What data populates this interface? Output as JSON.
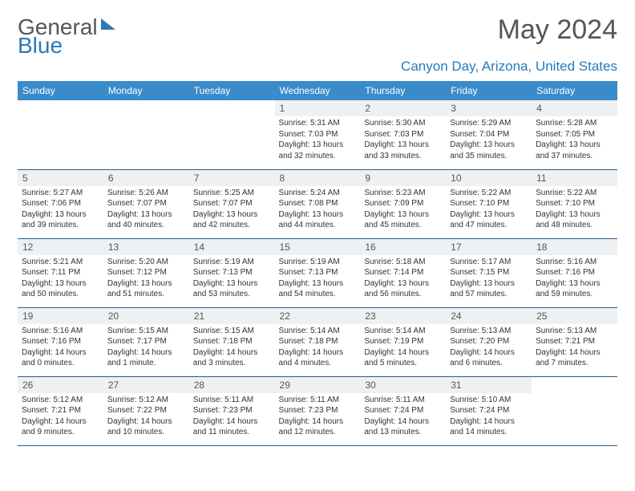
{
  "logo": {
    "part1": "General",
    "part2": "Blue"
  },
  "title": "May 2024",
  "location": "Canyon Day, Arizona, United States",
  "colors": {
    "headerBg": "#3a8bc9",
    "headerText": "#ffffff",
    "accent": "#2a7ab8",
    "dayStrip": "#eef1f3",
    "rowBorder": "#2a5a8a",
    "text": "#333333",
    "muted": "#555555"
  },
  "weekdays": [
    "Sunday",
    "Monday",
    "Tuesday",
    "Wednesday",
    "Thursday",
    "Friday",
    "Saturday"
  ],
  "weeks": [
    [
      null,
      null,
      null,
      {
        "n": "1",
        "sr": "5:31 AM",
        "ss": "7:03 PM",
        "dl": "13 hours and 32 minutes."
      },
      {
        "n": "2",
        "sr": "5:30 AM",
        "ss": "7:03 PM",
        "dl": "13 hours and 33 minutes."
      },
      {
        "n": "3",
        "sr": "5:29 AM",
        "ss": "7:04 PM",
        "dl": "13 hours and 35 minutes."
      },
      {
        "n": "4",
        "sr": "5:28 AM",
        "ss": "7:05 PM",
        "dl": "13 hours and 37 minutes."
      }
    ],
    [
      {
        "n": "5",
        "sr": "5:27 AM",
        "ss": "7:06 PM",
        "dl": "13 hours and 39 minutes."
      },
      {
        "n": "6",
        "sr": "5:26 AM",
        "ss": "7:07 PM",
        "dl": "13 hours and 40 minutes."
      },
      {
        "n": "7",
        "sr": "5:25 AM",
        "ss": "7:07 PM",
        "dl": "13 hours and 42 minutes."
      },
      {
        "n": "8",
        "sr": "5:24 AM",
        "ss": "7:08 PM",
        "dl": "13 hours and 44 minutes."
      },
      {
        "n": "9",
        "sr": "5:23 AM",
        "ss": "7:09 PM",
        "dl": "13 hours and 45 minutes."
      },
      {
        "n": "10",
        "sr": "5:22 AM",
        "ss": "7:10 PM",
        "dl": "13 hours and 47 minutes."
      },
      {
        "n": "11",
        "sr": "5:22 AM",
        "ss": "7:10 PM",
        "dl": "13 hours and 48 minutes."
      }
    ],
    [
      {
        "n": "12",
        "sr": "5:21 AM",
        "ss": "7:11 PM",
        "dl": "13 hours and 50 minutes."
      },
      {
        "n": "13",
        "sr": "5:20 AM",
        "ss": "7:12 PM",
        "dl": "13 hours and 51 minutes."
      },
      {
        "n": "14",
        "sr": "5:19 AM",
        "ss": "7:13 PM",
        "dl": "13 hours and 53 minutes."
      },
      {
        "n": "15",
        "sr": "5:19 AM",
        "ss": "7:13 PM",
        "dl": "13 hours and 54 minutes."
      },
      {
        "n": "16",
        "sr": "5:18 AM",
        "ss": "7:14 PM",
        "dl": "13 hours and 56 minutes."
      },
      {
        "n": "17",
        "sr": "5:17 AM",
        "ss": "7:15 PM",
        "dl": "13 hours and 57 minutes."
      },
      {
        "n": "18",
        "sr": "5:16 AM",
        "ss": "7:16 PM",
        "dl": "13 hours and 59 minutes."
      }
    ],
    [
      {
        "n": "19",
        "sr": "5:16 AM",
        "ss": "7:16 PM",
        "dl": "14 hours and 0 minutes."
      },
      {
        "n": "20",
        "sr": "5:15 AM",
        "ss": "7:17 PM",
        "dl": "14 hours and 1 minute."
      },
      {
        "n": "21",
        "sr": "5:15 AM",
        "ss": "7:18 PM",
        "dl": "14 hours and 3 minutes."
      },
      {
        "n": "22",
        "sr": "5:14 AM",
        "ss": "7:18 PM",
        "dl": "14 hours and 4 minutes."
      },
      {
        "n": "23",
        "sr": "5:14 AM",
        "ss": "7:19 PM",
        "dl": "14 hours and 5 minutes."
      },
      {
        "n": "24",
        "sr": "5:13 AM",
        "ss": "7:20 PM",
        "dl": "14 hours and 6 minutes."
      },
      {
        "n": "25",
        "sr": "5:13 AM",
        "ss": "7:21 PM",
        "dl": "14 hours and 7 minutes."
      }
    ],
    [
      {
        "n": "26",
        "sr": "5:12 AM",
        "ss": "7:21 PM",
        "dl": "14 hours and 9 minutes."
      },
      {
        "n": "27",
        "sr": "5:12 AM",
        "ss": "7:22 PM",
        "dl": "14 hours and 10 minutes."
      },
      {
        "n": "28",
        "sr": "5:11 AM",
        "ss": "7:23 PM",
        "dl": "14 hours and 11 minutes."
      },
      {
        "n": "29",
        "sr": "5:11 AM",
        "ss": "7:23 PM",
        "dl": "14 hours and 12 minutes."
      },
      {
        "n": "30",
        "sr": "5:11 AM",
        "ss": "7:24 PM",
        "dl": "14 hours and 13 minutes."
      },
      {
        "n": "31",
        "sr": "5:10 AM",
        "ss": "7:24 PM",
        "dl": "14 hours and 14 minutes."
      },
      null
    ]
  ],
  "labels": {
    "sunrise": "Sunrise: ",
    "sunset": "Sunset: ",
    "daylight": "Daylight: "
  }
}
